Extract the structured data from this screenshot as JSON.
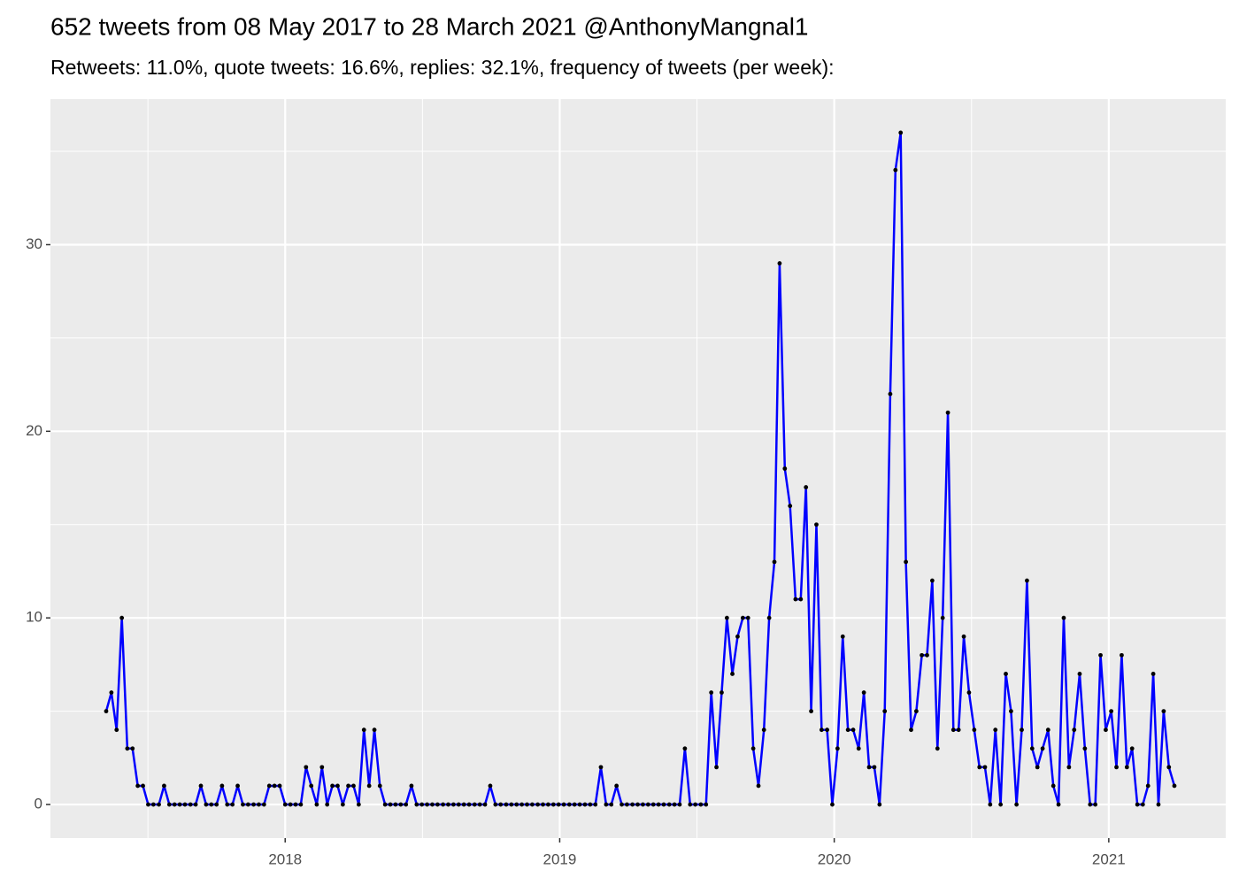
{
  "chart_data": {
    "type": "line",
    "title": "652 tweets from 08 May 2017 to 28 March 2021 @AnthonyMangnal1",
    "subtitle": "Retweets: 11.0%, quote tweets: 16.6%, replies: 32.1%, frequency of tweets (per week):",
    "x": [
      2017.348,
      2017.367,
      2017.386,
      2017.405,
      2017.425,
      2017.444,
      2017.463,
      2017.482,
      2017.501,
      2017.52,
      2017.54,
      2017.559,
      2017.578,
      2017.597,
      2017.616,
      2017.635,
      2017.655,
      2017.674,
      2017.693,
      2017.712,
      2017.731,
      2017.75,
      2017.77,
      2017.789,
      2017.808,
      2017.827,
      2017.846,
      2017.865,
      2017.885,
      2017.904,
      2017.923,
      2017.942,
      2017.961,
      2017.98,
      2018.0,
      2018.019,
      2018.038,
      2018.057,
      2018.076,
      2018.095,
      2018.115,
      2018.134,
      2018.153,
      2018.172,
      2018.191,
      2018.21,
      2018.23,
      2018.249,
      2018.268,
      2018.287,
      2018.306,
      2018.325,
      2018.345,
      2018.364,
      2018.383,
      2018.402,
      2018.421,
      2018.44,
      2018.46,
      2018.479,
      2018.498,
      2018.517,
      2018.536,
      2018.555,
      2018.575,
      2018.594,
      2018.613,
      2018.632,
      2018.651,
      2018.67,
      2018.69,
      2018.709,
      2018.728,
      2018.747,
      2018.766,
      2018.785,
      2018.805,
      2018.824,
      2018.843,
      2018.862,
      2018.881,
      2018.9,
      2018.92,
      2018.939,
      2018.958,
      2018.977,
      2018.996,
      2019.015,
      2019.035,
      2019.054,
      2019.073,
      2019.092,
      2019.111,
      2019.13,
      2019.15,
      2019.169,
      2019.188,
      2019.207,
      2019.226,
      2019.245,
      2019.265,
      2019.284,
      2019.303,
      2019.322,
      2019.341,
      2019.36,
      2019.379,
      2019.399,
      2019.418,
      2019.437,
      2019.456,
      2019.475,
      2019.494,
      2019.514,
      2019.533,
      2019.552,
      2019.571,
      2019.59,
      2019.609,
      2019.629,
      2019.648,
      2019.667,
      2019.686,
      2019.705,
      2019.724,
      2019.744,
      2019.763,
      2019.782,
      2019.801,
      2019.82,
      2019.839,
      2019.859,
      2019.878,
      2019.897,
      2019.916,
      2019.935,
      2019.954,
      2019.974,
      2019.993,
      2020.012,
      2020.031,
      2020.05,
      2020.069,
      2020.089,
      2020.108,
      2020.127,
      2020.146,
      2020.165,
      2020.184,
      2020.204,
      2020.223,
      2020.242,
      2020.261,
      2020.28,
      2020.299,
      2020.319,
      2020.338,
      2020.357,
      2020.376,
      2020.395,
      2020.414,
      2020.434,
      2020.453,
      2020.472,
      2020.491,
      2020.51,
      2020.529,
      2020.549,
      2020.568,
      2020.587,
      2020.606,
      2020.625,
      2020.644,
      2020.664,
      2020.683,
      2020.702,
      2020.721,
      2020.74,
      2020.759,
      2020.779,
      2020.798,
      2020.817,
      2020.836,
      2020.855,
      2020.874,
      2020.894,
      2020.913,
      2020.932,
      2020.951,
      2020.97,
      2020.989,
      2021.009,
      2021.028,
      2021.047,
      2021.066,
      2021.085,
      2021.104,
      2021.124,
      2021.143,
      2021.162,
      2021.181,
      2021.2,
      2021.219,
      2021.239
    ],
    "values": [
      5,
      6,
      4,
      10,
      3,
      3,
      1,
      1,
      0,
      0,
      0,
      1,
      0,
      0,
      0,
      0,
      0,
      0,
      1,
      0,
      0,
      0,
      1,
      0,
      0,
      1,
      0,
      0,
      0,
      0,
      0,
      1,
      1,
      1,
      0,
      0,
      0,
      0,
      2,
      1,
      0,
      2,
      0,
      1,
      1,
      0,
      1,
      1,
      0,
      4,
      1,
      4,
      1,
      0,
      0,
      0,
      0,
      0,
      1,
      0,
      0,
      0,
      0,
      0,
      0,
      0,
      0,
      0,
      0,
      0,
      0,
      0,
      0,
      1,
      0,
      0,
      0,
      0,
      0,
      0,
      0,
      0,
      0,
      0,
      0,
      0,
      0,
      0,
      0,
      0,
      0,
      0,
      0,
      0,
      2,
      0,
      0,
      1,
      0,
      0,
      0,
      0,
      0,
      0,
      0,
      0,
      0,
      0,
      0,
      0,
      3,
      0,
      0,
      0,
      0,
      6,
      2,
      6,
      10,
      7,
      9,
      10,
      10,
      3,
      1,
      4,
      10,
      13,
      29,
      18,
      16,
      11,
      11,
      17,
      5,
      15,
      4,
      4,
      0,
      3,
      9,
      4,
      4,
      3,
      6,
      2,
      2,
      0,
      5,
      22,
      34,
      36,
      13,
      4,
      5,
      8,
      8,
      12,
      3,
      10,
      21,
      4,
      4,
      9,
      6,
      4,
      2,
      2,
      0,
      4,
      0,
      7,
      5,
      0,
      4,
      12,
      3,
      2,
      3,
      4,
      1,
      0,
      10,
      2,
      4,
      7,
      3,
      0,
      0,
      8,
      4,
      5,
      2,
      8,
      2,
      3,
      0,
      0,
      1,
      7,
      0,
      5,
      2,
      1
    ],
    "color": "#0000ff",
    "marker_color": "#000000",
    "xlim": [
      2017.145,
      2021.426
    ],
    "ylim": [
      -1.8,
      37.8
    ],
    "xticks": [
      2018,
      2019,
      2020,
      2021
    ],
    "yticks": [
      0,
      10,
      20,
      30
    ],
    "grid": true
  }
}
